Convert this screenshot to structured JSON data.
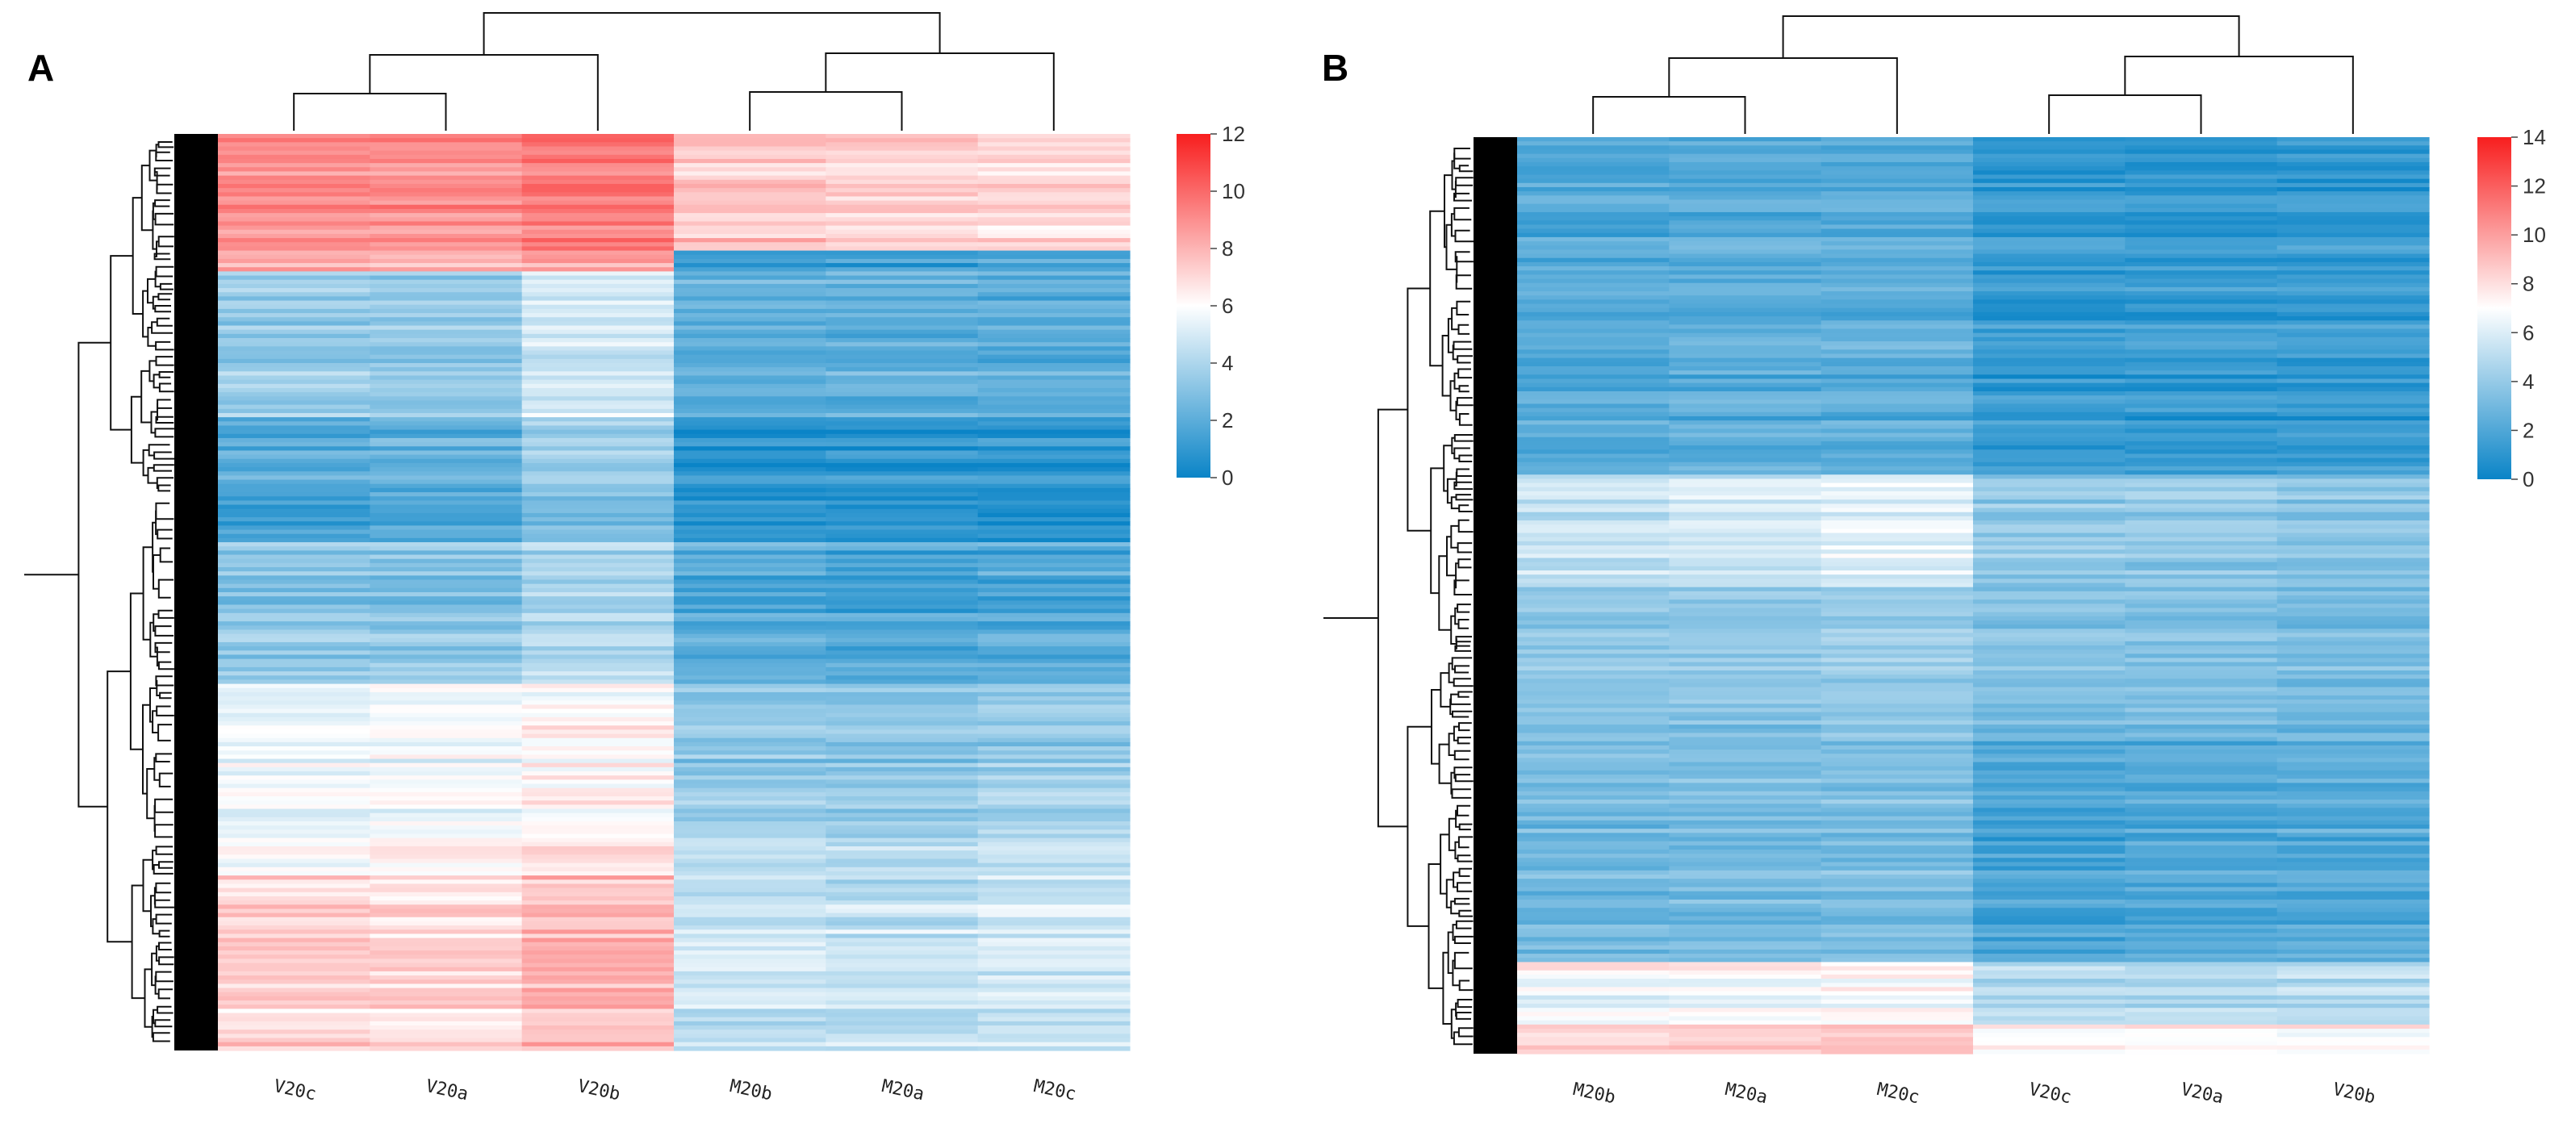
{
  "chart_data": [
    {
      "panel": "A",
      "type": "heatmap",
      "title": "",
      "columns": [
        "V20c",
        "V20a",
        "V20b",
        "M20b",
        "M20a",
        "M20c"
      ],
      "colorbar": {
        "min": 0,
        "max": 12,
        "ticks": [
          0,
          2,
          4,
          6,
          8,
          10,
          12
        ],
        "low_color": "#0a84c7",
        "mid_color": "#ffffff",
        "high_color": "#f81e1e",
        "mid_value": 6
      },
      "row_segments": [
        {
          "fraction": 0.125,
          "values": [
            9.0,
            9.0,
            9.5,
            7.5,
            7.2,
            7.0
          ]
        },
        {
          "fraction": 0.025,
          "values": [
            8.2,
            8.0,
            8.5,
            1.0,
            1.2,
            1.5
          ]
        },
        {
          "fraction": 0.16,
          "values": [
            3.6,
            3.5,
            5.0,
            2.2,
            2.2,
            2.1
          ]
        },
        {
          "fraction": 0.085,
          "values": [
            2.0,
            2.3,
            3.6,
            0.8,
            0.9,
            1.0
          ]
        },
        {
          "fraction": 0.05,
          "values": [
            1.0,
            1.4,
            2.4,
            0.5,
            0.5,
            0.4
          ]
        },
        {
          "fraction": 0.155,
          "values": [
            3.2,
            3.1,
            4.1,
            1.9,
            1.6,
            1.8
          ]
        },
        {
          "fraction": 0.16,
          "values": [
            5.5,
            5.7,
            6.2,
            3.3,
            3.2,
            3.4
          ]
        },
        {
          "fraction": 0.05,
          "values": [
            6.0,
            6.2,
            6.6,
            4.2,
            4.0,
            4.5
          ]
        },
        {
          "fraction": 0.19,
          "values": [
            7.2,
            7.1,
            7.9,
            4.7,
            4.5,
            4.8
          ]
        }
      ],
      "col_dendrogram": {
        "merge_order": [
          [
            "V20c",
            "V20a"
          ],
          [
            "V20c,V20a",
            "V20b"
          ],
          [
            "M20b",
            "M20a"
          ],
          [
            "M20b,M20a",
            "M20c"
          ],
          [
            "V",
            "M"
          ]
        ]
      }
    },
    {
      "panel": "B",
      "type": "heatmap",
      "title": "",
      "columns": [
        "M20b",
        "M20a",
        "M20c",
        "V20c",
        "V20a",
        "V20b"
      ],
      "colorbar": {
        "min": 0,
        "max": 14,
        "ticks": [
          0,
          2,
          4,
          6,
          8,
          10,
          12,
          14
        ],
        "low_color": "#0a84c7",
        "mid_color": "#ffffff",
        "high_color": "#f81e1e",
        "mid_value": 7
      },
      "row_segments": [
        {
          "fraction": 0.37,
          "values": [
            2.0,
            2.2,
            2.3,
            1.2,
            1.2,
            1.2
          ]
        },
        {
          "fraction": 0.12,
          "values": [
            5.2,
            5.6,
            6.0,
            3.8,
            3.8,
            3.6
          ]
        },
        {
          "fraction": 0.17,
          "values": [
            3.5,
            3.6,
            3.9,
            3.2,
            3.1,
            3.0
          ]
        },
        {
          "fraction": 0.24,
          "values": [
            3.0,
            3.1,
            3.2,
            1.8,
            2.0,
            2.2
          ]
        },
        {
          "fraction": 0.01,
          "values": [
            8.6,
            8.2,
            8.0,
            5.5,
            5.2,
            5.0
          ]
        },
        {
          "fraction": 0.06,
          "values": [
            6.3,
            6.6,
            6.9,
            4.6,
            4.7,
            4.8
          ]
        },
        {
          "fraction": 0.03,
          "values": [
            8.4,
            8.6,
            8.9,
            7.4,
            7.3,
            7.3
          ]
        }
      ],
      "col_dendrogram": {
        "merge_order": [
          [
            "M20b",
            "M20a"
          ],
          [
            "M20b,M20a",
            "M20c"
          ],
          [
            "V20c",
            "V20a"
          ],
          [
            "V20c,V20a",
            "V20b"
          ],
          [
            "M",
            "V"
          ]
        ]
      }
    }
  ]
}
